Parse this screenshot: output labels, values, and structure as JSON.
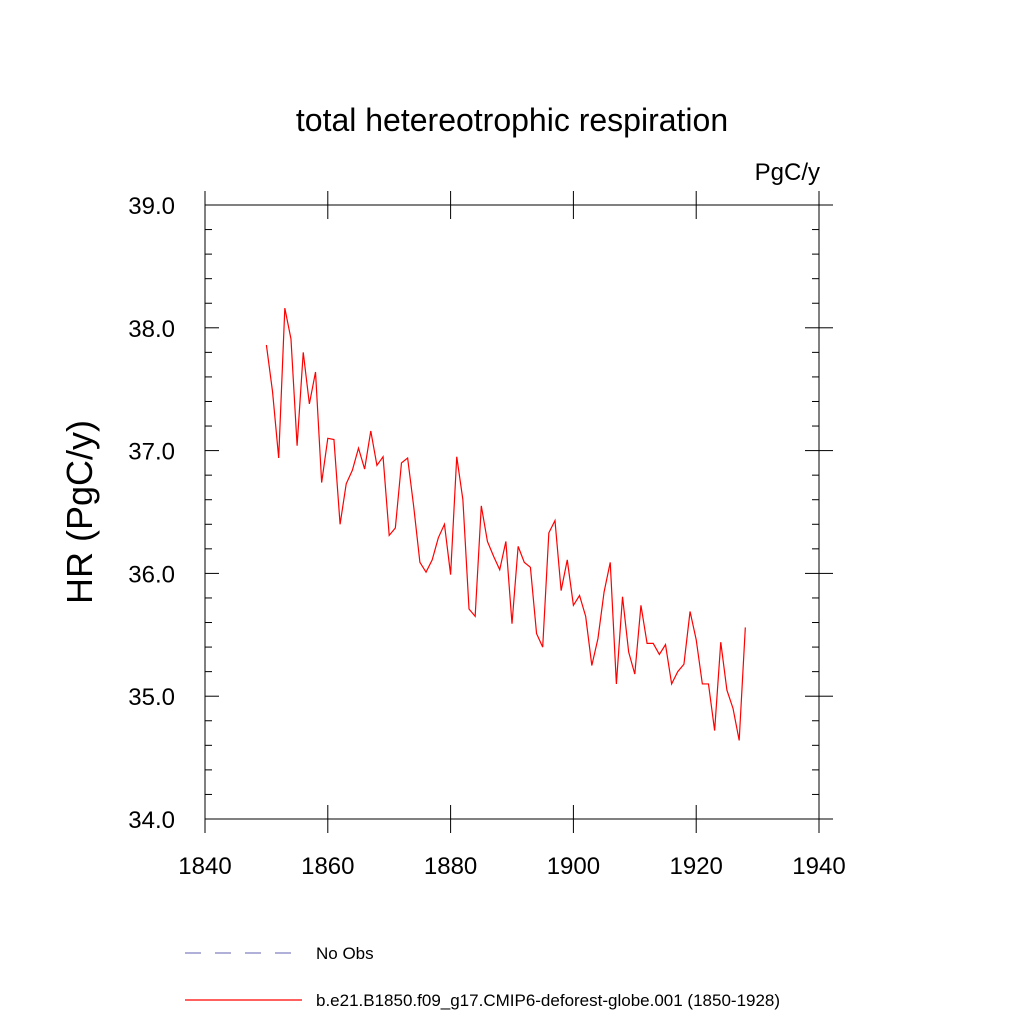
{
  "chart_data": {
    "type": "line",
    "title": "total hetereotrophic respiration",
    "units_label": "PgC/y",
    "xlabel": "",
    "ylabel": "HR  (PgC/y)",
    "xlim": [
      1840,
      1940
    ],
    "ylim": [
      34.0,
      39.0
    ],
    "x_ticks": [
      1840,
      1860,
      1880,
      1900,
      1920,
      1940
    ],
    "x_tick_labels": [
      "1840",
      "1860",
      "1880",
      "1900",
      "1920",
      "1940"
    ],
    "y_ticks": [
      34.0,
      35.0,
      36.0,
      37.0,
      38.0,
      39.0
    ],
    "y_tick_labels": [
      "34.0",
      "35.0",
      "36.0",
      "37.0",
      "38.0",
      "39.0"
    ],
    "grid": false,
    "legend_position": "bottom",
    "series": [
      {
        "name": "b.e21.B1850.f09_g17.CMIP6-deforest-globe.001 (1850-1928)",
        "color": "#ff0000",
        "style": "solid",
        "x": [
          1850,
          1851,
          1852,
          1853,
          1854,
          1855,
          1856,
          1857,
          1858,
          1859,
          1860,
          1861,
          1862,
          1863,
          1864,
          1865,
          1866,
          1867,
          1868,
          1869,
          1870,
          1871,
          1872,
          1873,
          1874,
          1875,
          1876,
          1877,
          1878,
          1879,
          1880,
          1881,
          1882,
          1883,
          1884,
          1885,
          1886,
          1887,
          1888,
          1889,
          1890,
          1891,
          1892,
          1893,
          1894,
          1895,
          1896,
          1897,
          1898,
          1899,
          1900,
          1901,
          1902,
          1903,
          1904,
          1905,
          1906,
          1907,
          1908,
          1909,
          1910,
          1911,
          1912,
          1913,
          1914,
          1915,
          1916,
          1917,
          1918,
          1919,
          1920,
          1921,
          1922,
          1923,
          1924,
          1925,
          1926,
          1927,
          1928
        ],
        "values": [
          37.86,
          37.48,
          36.94,
          38.16,
          37.91,
          37.04,
          37.8,
          37.38,
          37.64,
          36.74,
          37.1,
          37.09,
          36.4,
          36.73,
          36.84,
          37.02,
          36.85,
          37.16,
          36.88,
          36.95,
          36.31,
          36.37,
          36.9,
          36.94,
          36.54,
          36.09,
          36.01,
          36.11,
          36.29,
          36.4,
          35.99,
          36.95,
          36.6,
          35.71,
          35.65,
          36.55,
          36.26,
          36.14,
          36.03,
          36.26,
          35.59,
          36.22,
          36.09,
          36.05,
          35.51,
          35.4,
          36.33,
          36.43,
          35.86,
          36.11,
          35.74,
          35.82,
          35.65,
          35.25,
          35.47,
          35.85,
          36.09,
          35.1,
          35.81,
          35.36,
          35.18,
          35.74,
          35.43,
          35.43,
          35.34,
          35.42,
          35.1,
          35.2,
          35.26,
          35.69,
          35.46,
          35.1,
          35.1,
          34.72,
          35.44,
          35.05,
          34.9,
          34.64,
          35.56
        ]
      },
      {
        "name": "No Obs",
        "color": "#8080c0",
        "style": "dashed",
        "x": [],
        "values": []
      }
    ]
  }
}
